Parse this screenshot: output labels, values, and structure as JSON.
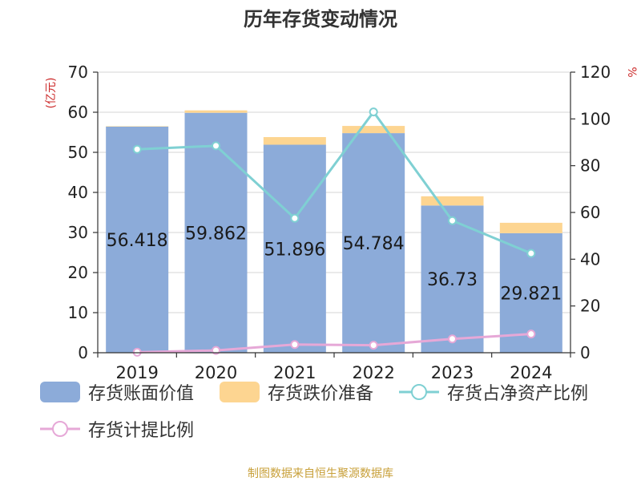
{
  "title": "历年存货变动情况",
  "source": "制图数据来自恒生聚源数据库",
  "colors": {
    "book_value": "#8cabd9",
    "impairment": "#fdd591",
    "ratio_net_assets": "#7fd0d3",
    "provision_ratio": "#e6a8d7"
  },
  "chart_data": {
    "type": "bar",
    "title": "历年存货变动情况",
    "categories": [
      "2019",
      "2020",
      "2021",
      "2022",
      "2023",
      "2024"
    ],
    "left_axis": {
      "unit": "(亿元)",
      "ylim": [
        0,
        70
      ],
      "ticks": [
        0,
        10,
        20,
        30,
        40,
        50,
        60,
        70
      ]
    },
    "right_axis": {
      "unit": "%",
      "ylim": [
        0,
        120
      ],
      "ticks": [
        0,
        20,
        40,
        60,
        80,
        100,
        120
      ]
    },
    "grid": true,
    "legend_position": "bottom",
    "series": [
      {
        "name": "存货账面价值",
        "type": "bar",
        "stack": "inventory",
        "axis": "left",
        "values": [
          56.418,
          59.862,
          51.896,
          54.784,
          36.73,
          29.821
        ],
        "labels": [
          "56.418",
          "59.862",
          "51.896",
          "54.784",
          "36.73",
          "29.821"
        ]
      },
      {
        "name": "存货跌价准备",
        "type": "bar",
        "stack": "inventory",
        "axis": "left",
        "values": [
          0.1,
          0.6,
          1.9,
          1.8,
          2.3,
          2.6
        ]
      },
      {
        "name": "存货占净资产比例",
        "type": "line",
        "axis": "right",
        "values": [
          87,
          88.5,
          57.5,
          103,
          56.5,
          42.5
        ]
      },
      {
        "name": "存货计提比例",
        "type": "line",
        "axis": "right",
        "values": [
          0.2,
          1.0,
          3.5,
          3.2,
          5.9,
          8.0
        ]
      }
    ]
  }
}
